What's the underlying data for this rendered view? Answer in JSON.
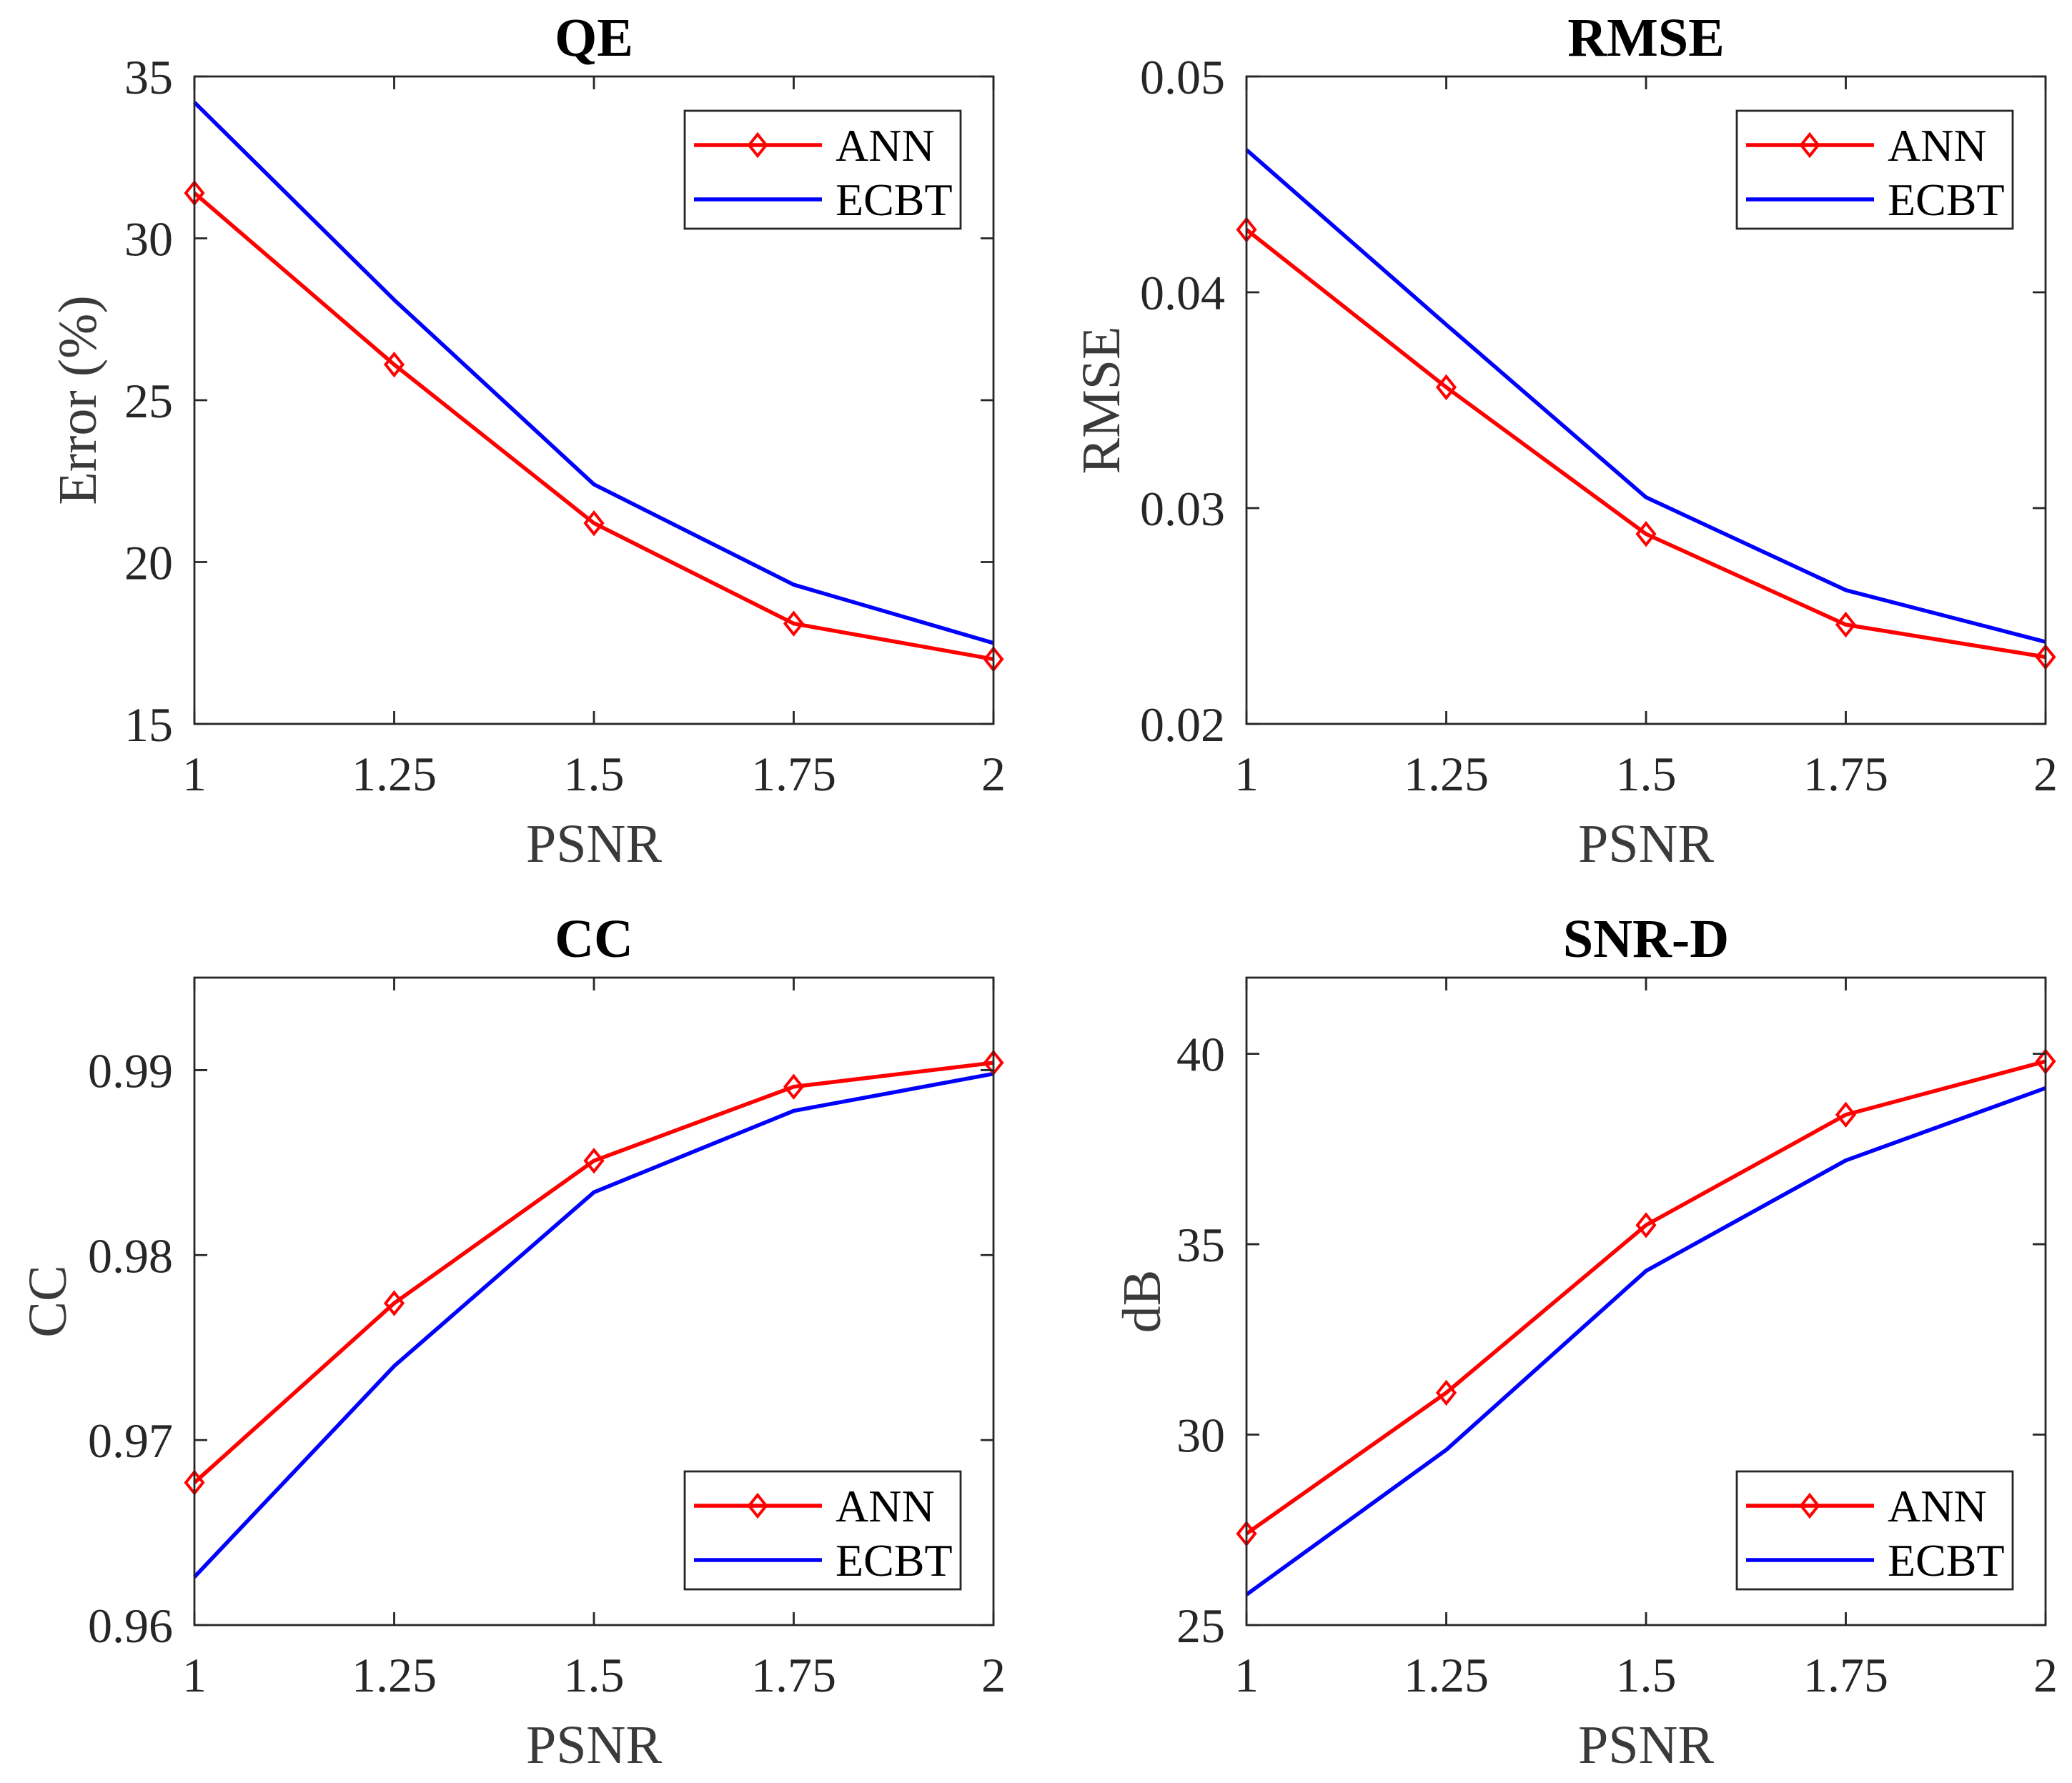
{
  "chart_data": [
    {
      "type": "line",
      "title": "QE",
      "xlabel": "PSNR",
      "ylabel": "Error (%)",
      "x": [
        1,
        1.25,
        1.5,
        1.75,
        2
      ],
      "x_tick_labels": [
        "1",
        "1.25",
        "1.5",
        "1.75",
        "2"
      ],
      "xlim": [
        1,
        2
      ],
      "ylim": [
        15,
        35
      ],
      "y_ticks": [
        15,
        20,
        25,
        30,
        35
      ],
      "y_tick_labels": [
        "15",
        "20",
        "25",
        "30",
        "35"
      ],
      "grid": false,
      "legend_position": "top-right",
      "series": [
        {
          "name": "ANN",
          "color": "#ff0000",
          "markers": true,
          "values": [
            31.4,
            26.1,
            21.2,
            18.1,
            17.0
          ]
        },
        {
          "name": "ECBT",
          "color": "#0000ff",
          "markers": false,
          "values": [
            34.2,
            28.1,
            22.4,
            19.3,
            17.5
          ]
        }
      ]
    },
    {
      "type": "line",
      "title": "RMSE",
      "xlabel": "PSNR",
      "ylabel": "RMSE",
      "x": [
        1,
        1.25,
        1.5,
        1.75,
        2
      ],
      "x_tick_labels": [
        "1",
        "1.25",
        "1.5",
        "1.75",
        "2"
      ],
      "xlim": [
        1,
        2
      ],
      "ylim": [
        0.02,
        0.05
      ],
      "y_ticks": [
        0.02,
        0.03,
        0.04,
        0.05
      ],
      "y_tick_labels": [
        "0.02",
        "0.03",
        "0.04",
        "0.05"
      ],
      "grid": false,
      "legend_position": "top-right",
      "series": [
        {
          "name": "ANN",
          "color": "#ff0000",
          "markers": true,
          "values": [
            0.0429,
            0.0356,
            0.0288,
            0.0246,
            0.0231
          ]
        },
        {
          "name": "ECBT",
          "color": "#0000ff",
          "markers": false,
          "values": [
            0.0466,
            0.0385,
            0.0305,
            0.0262,
            0.0238
          ]
        }
      ]
    },
    {
      "type": "line",
      "title": "CC",
      "xlabel": "PSNR",
      "ylabel": "CC",
      "x": [
        1,
        1.25,
        1.5,
        1.75,
        2
      ],
      "x_tick_labels": [
        "1",
        "1.25",
        "1.5",
        "1.75",
        "2"
      ],
      "xlim": [
        1,
        2
      ],
      "ylim": [
        0.96,
        0.995
      ],
      "y_ticks": [
        0.96,
        0.97,
        0.98,
        0.99
      ],
      "y_tick_labels": [
        "0.96",
        "0.97",
        "0.98",
        "0.99"
      ],
      "grid": false,
      "legend_position": "bottom-right",
      "series": [
        {
          "name": "ANN",
          "color": "#ff0000",
          "markers": true,
          "values": [
            0.9677,
            0.9774,
            0.9851,
            0.9891,
            0.9904
          ]
        },
        {
          "name": "ECBT",
          "color": "#0000ff",
          "markers": false,
          "values": [
            0.9626,
            0.974,
            0.9834,
            0.9878,
            0.9898
          ]
        }
      ]
    },
    {
      "type": "line",
      "title": "SNR-D",
      "xlabel": "PSNR",
      "ylabel": "dB",
      "x": [
        1,
        1.25,
        1.5,
        1.75,
        2
      ],
      "x_tick_labels": [
        "1",
        "1.25",
        "1.5",
        "1.75",
        "2"
      ],
      "xlim": [
        1,
        2
      ],
      "ylim": [
        25,
        42
      ],
      "y_ticks": [
        25,
        30,
        35,
        40
      ],
      "y_tick_labels": [
        "25",
        "30",
        "35",
        "40"
      ],
      "grid": false,
      "legend_position": "bottom-right",
      "series": [
        {
          "name": "ANN",
          "color": "#ff0000",
          "markers": true,
          "values": [
            27.4,
            31.1,
            35.5,
            38.4,
            39.8
          ]
        },
        {
          "name": "ECBT",
          "color": "#0000ff",
          "markers": false,
          "values": [
            25.8,
            29.6,
            34.3,
            37.2,
            39.1
          ]
        }
      ]
    }
  ]
}
